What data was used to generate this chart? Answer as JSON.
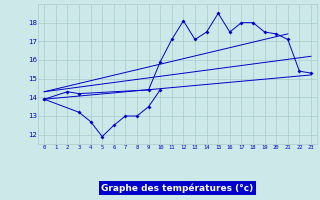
{
  "xlabel": "Graphe des températures (°c)",
  "background_color": "#cce8e8",
  "grid_color": "#aacccc",
  "line_color": "#0000cc",
  "hours": [
    0,
    1,
    2,
    3,
    4,
    5,
    6,
    7,
    8,
    9,
    10,
    11,
    12,
    13,
    14,
    15,
    16,
    17,
    18,
    19,
    20,
    21,
    22,
    23
  ],
  "temp_main": [
    13.9,
    null,
    14.3,
    14.2,
    null,
    null,
    null,
    null,
    null,
    14.4,
    15.9,
    17.1,
    18.1,
    17.1,
    17.5,
    18.5,
    17.5,
    18.0,
    18.0,
    17.5,
    17.4,
    17.1,
    15.4,
    15.3
  ],
  "temp_low": [
    13.9,
    null,
    null,
    13.2,
    12.7,
    11.9,
    12.5,
    13.0,
    13.0,
    13.5,
    14.4,
    null,
    null,
    null,
    null,
    null,
    null,
    null,
    null,
    null,
    null,
    null,
    null,
    null
  ],
  "trend_line1_x": [
    0,
    23
  ],
  "trend_line1_y": [
    13.9,
    15.2
  ],
  "trend_line2_x": [
    0,
    23
  ],
  "trend_line2_y": [
    14.3,
    16.2
  ],
  "trend_line3_x": [
    0,
    21
  ],
  "trend_line3_y": [
    14.3,
    17.4
  ],
  "ylim": [
    11.5,
    19.0
  ],
  "yticks": [
    12,
    13,
    14,
    15,
    16,
    17,
    18
  ],
  "xticks": [
    0,
    1,
    2,
    3,
    4,
    5,
    6,
    7,
    8,
    9,
    10,
    11,
    12,
    13,
    14,
    15,
    16,
    17,
    18,
    19,
    20,
    21,
    22,
    23
  ],
  "figsize": [
    3.2,
    2.0
  ],
  "dpi": 100
}
